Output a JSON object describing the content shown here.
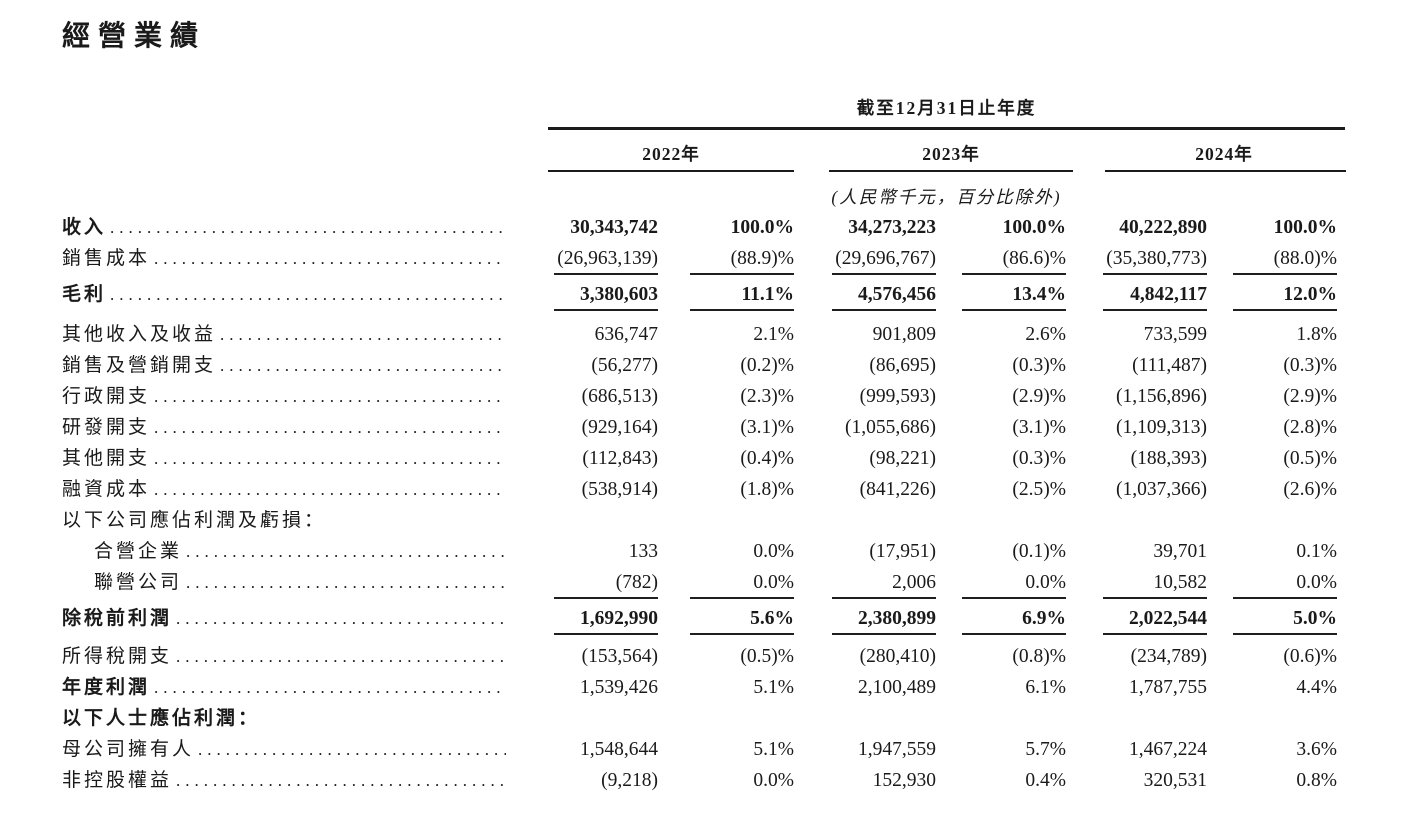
{
  "page_title": "經營業績",
  "colors": {
    "text": "#1a1a1a",
    "rule": "#1b1b1b",
    "background": "#ffffff"
  },
  "table": {
    "period_header": "截至12月31日止年度",
    "years": [
      "2022年",
      "2023年",
      "2024年"
    ],
    "unit_note": "(人民幣千元，百分比除外)",
    "rows": [
      {
        "label": "收入",
        "values": [
          "30,343,742",
          "100.0%",
          "34,273,223",
          "100.0%",
          "40,222,890",
          "100.0%"
        ]
      },
      {
        "label": "銷售成本",
        "values": [
          "(26,963,139)",
          "(88.9)%",
          "(29,696,767)",
          "(86.6)%",
          "(35,380,773)",
          "(88.0)%"
        ]
      },
      {
        "label": "毛利",
        "values": [
          "3,380,603",
          "11.1%",
          "4,576,456",
          "13.4%",
          "4,842,117",
          "12.0%"
        ]
      },
      {
        "label": "其他收入及收益",
        "values": [
          "636,747",
          "2.1%",
          "901,809",
          "2.6%",
          "733,599",
          "1.8%"
        ]
      },
      {
        "label": "銷售及營銷開支",
        "values": [
          "(56,277)",
          "(0.2)%",
          "(86,695)",
          "(0.3)%",
          "(111,487)",
          "(0.3)%"
        ]
      },
      {
        "label": "行政開支",
        "values": [
          "(686,513)",
          "(2.3)%",
          "(999,593)",
          "(2.9)%",
          "(1,156,896)",
          "(2.9)%"
        ]
      },
      {
        "label": "研發開支",
        "values": [
          "(929,164)",
          "(3.1)%",
          "(1,055,686)",
          "(3.1)%",
          "(1,109,313)",
          "(2.8)%"
        ]
      },
      {
        "label": "其他開支",
        "values": [
          "(112,843)",
          "(0.4)%",
          "(98,221)",
          "(0.3)%",
          "(188,393)",
          "(0.5)%"
        ]
      },
      {
        "label": "融資成本",
        "values": [
          "(538,914)",
          "(1.8)%",
          "(841,226)",
          "(2.5)%",
          "(1,037,366)",
          "(2.6)%"
        ]
      },
      {
        "label": "以下公司應佔利潤及虧損：",
        "values": []
      },
      {
        "label": "合營企業",
        "values": [
          "133",
          "0.0%",
          "(17,951)",
          "(0.1)%",
          "39,701",
          "0.1%"
        ]
      },
      {
        "label": "聯營公司",
        "values": [
          "(782)",
          "0.0%",
          "2,006",
          "0.0%",
          "10,582",
          "0.0%"
        ]
      },
      {
        "label": "除稅前利潤",
        "values": [
          "1,692,990",
          "5.6%",
          "2,380,899",
          "6.9%",
          "2,022,544",
          "5.0%"
        ]
      },
      {
        "label": "所得稅開支",
        "values": [
          "(153,564)",
          "(0.5)%",
          "(280,410)",
          "(0.8)%",
          "(234,789)",
          "(0.6)%"
        ]
      },
      {
        "label": "年度利潤",
        "values": [
          "1,539,426",
          "5.1%",
          "2,100,489",
          "6.1%",
          "1,787,755",
          "4.4%"
        ]
      },
      {
        "label": "以下人士應佔利潤：",
        "values": []
      },
      {
        "label": "母公司擁有人",
        "values": [
          "1,548,644",
          "5.1%",
          "1,947,559",
          "5.7%",
          "1,467,224",
          "3.6%"
        ]
      },
      {
        "label": "非控股權益",
        "values": [
          "(9,218)",
          "0.0%",
          "152,930",
          "0.4%",
          "320,531",
          "0.8%"
        ]
      }
    ]
  }
}
